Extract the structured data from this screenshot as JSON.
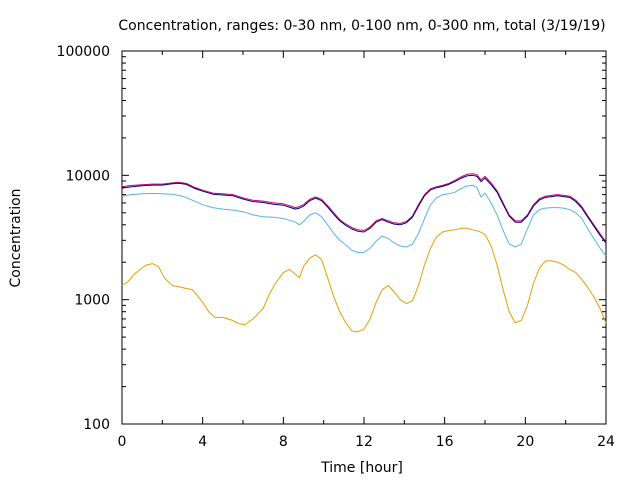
{
  "chart_data": {
    "type": "line",
    "title": "Concentration, ranges: 0-30 nm, 0-100 nm, 0-300 nm, total (3/19/19)",
    "xlabel": "Time [hour]",
    "ylabel": "Concentration",
    "xlim": [
      0,
      24
    ],
    "ylim": [
      100,
      100000
    ],
    "yscale": "log",
    "xticks": [
      0,
      4,
      8,
      12,
      16,
      20,
      24
    ],
    "xtick_labels": [
      "0",
      "4",
      "8",
      "12",
      "16",
      "20",
      "24"
    ],
    "yticks": [
      100,
      1000,
      10000,
      100000
    ],
    "ytick_labels": [
      "100",
      "1000",
      "10000",
      "100000"
    ],
    "grid": false,
    "legend": "none",
    "series": [
      {
        "color": "#E69F00",
        "x": [
          0,
          0.3,
          0.6,
          0.9,
          1.2,
          1.5,
          1.8,
          2.1,
          2.5,
          3,
          3.5,
          4,
          4.3,
          4.6,
          5,
          5.5,
          5.8,
          6.1,
          6.5,
          7,
          7.3,
          7.6,
          8,
          8.3,
          8.6,
          8.8,
          9,
          9.3,
          9.6,
          9.9,
          10.2,
          10.5,
          10.8,
          11.1,
          11.4,
          11.7,
          12,
          12.3,
          12.6,
          12.9,
          13.2,
          13.5,
          13.8,
          14.1,
          14.4,
          14.7,
          15,
          15.3,
          15.6,
          15.9,
          16.2,
          16.5,
          16.8,
          17.1,
          17.4,
          17.7,
          18,
          18.3,
          18.6,
          18.9,
          19.2,
          19.5,
          19.8,
          20.1,
          20.4,
          20.7,
          21,
          21.3,
          21.6,
          21.9,
          22.2,
          22.5,
          22.8,
          23.1,
          23.4,
          23.7,
          24
        ],
        "y": [
          1300,
          1400,
          1600,
          1750,
          1900,
          1950,
          1850,
          1500,
          1300,
          1250,
          1200,
          950,
          800,
          720,
          720,
          680,
          640,
          630,
          700,
          850,
          1100,
          1350,
          1650,
          1750,
          1600,
          1500,
          1850,
          2150,
          2300,
          2100,
          1500,
          1050,
          800,
          650,
          560,
          550,
          580,
          700,
          950,
          1200,
          1300,
          1150,
          1000,
          930,
          980,
          1300,
          1900,
          2600,
          3200,
          3500,
          3600,
          3650,
          3750,
          3750,
          3650,
          3550,
          3350,
          2700,
          1900,
          1200,
          800,
          650,
          680,
          900,
          1350,
          1800,
          2050,
          2050,
          2000,
          1900,
          1750,
          1650,
          1450,
          1250,
          1050,
          850,
          650
        ]
      },
      {
        "color": "#56B4E9",
        "x": [
          0,
          0.5,
          1,
          1.5,
          2,
          2.5,
          3,
          3.5,
          4,
          4.5,
          5,
          5.5,
          6,
          6.5,
          7,
          7.5,
          8,
          8.3,
          8.6,
          8.8,
          9,
          9.3,
          9.6,
          9.9,
          10.2,
          10.5,
          10.8,
          11.1,
          11.4,
          11.7,
          12,
          12.3,
          12.6,
          12.9,
          13.2,
          13.5,
          13.8,
          14.1,
          14.4,
          14.7,
          15,
          15.3,
          15.6,
          15.9,
          16.2,
          16.5,
          16.8,
          17.1,
          17.4,
          17.6,
          17.8,
          18,
          18.3,
          18.6,
          18.9,
          19.2,
          19.5,
          19.8,
          20.1,
          20.4,
          20.7,
          21,
          21.3,
          21.6,
          21.9,
          22.2,
          22.5,
          22.8,
          23.1,
          23.4,
          23.7,
          24
        ],
        "y": [
          6800,
          7000,
          7100,
          7150,
          7100,
          7050,
          6800,
          6300,
          5800,
          5500,
          5350,
          5250,
          5100,
          4800,
          4650,
          4600,
          4500,
          4350,
          4200,
          4000,
          4250,
          4800,
          5000,
          4650,
          4000,
          3400,
          3000,
          2750,
          2500,
          2400,
          2400,
          2600,
          2950,
          3250,
          3100,
          2850,
          2700,
          2650,
          2800,
          3400,
          4500,
          5800,
          6600,
          7000,
          7100,
          7300,
          7800,
          8200,
          8300,
          8000,
          6700,
          7200,
          6000,
          4800,
          3600,
          2800,
          2650,
          2800,
          3700,
          4800,
          5300,
          5450,
          5500,
          5500,
          5450,
          5300,
          5000,
          4500,
          3700,
          3100,
          2600,
          2250
        ]
      },
      {
        "color": "#CC0066",
        "x": [
          0,
          0.5,
          1,
          1.5,
          2,
          2.5,
          2.8,
          3.2,
          3.6,
          4,
          4.5,
          5,
          5.5,
          6,
          6.5,
          7,
          7.5,
          8,
          8.3,
          8.6,
          8.8,
          9,
          9.3,
          9.6,
          9.9,
          10.2,
          10.5,
          10.8,
          11.1,
          11.4,
          11.7,
          12,
          12.3,
          12.6,
          12.9,
          13.2,
          13.5,
          13.8,
          14.1,
          14.4,
          14.7,
          15,
          15.3,
          15.6,
          15.9,
          16.2,
          16.5,
          16.8,
          17.1,
          17.4,
          17.6,
          17.8,
          18,
          18.3,
          18.6,
          18.9,
          19.2,
          19.5,
          19.8,
          20.1,
          20.4,
          20.7,
          21,
          21.3,
          21.6,
          21.9,
          22.2,
          22.5,
          22.8,
          23.1,
          23.4,
          23.7,
          24
        ],
        "y": [
          8100,
          8300,
          8400,
          8500,
          8500,
          8700,
          8800,
          8600,
          8000,
          7600,
          7200,
          7100,
          7000,
          6600,
          6300,
          6200,
          6000,
          5900,
          5700,
          5500,
          5600,
          5800,
          6400,
          6700,
          6400,
          5700,
          5000,
          4400,
          4050,
          3800,
          3650,
          3600,
          3850,
          4300,
          4500,
          4300,
          4150,
          4100,
          4250,
          4700,
          5800,
          7000,
          7800,
          8100,
          8300,
          8600,
          9100,
          9700,
          10200,
          10300,
          10100,
          9200,
          9800,
          8700,
          7500,
          6000,
          4800,
          4300,
          4300,
          4800,
          5800,
          6500,
          6800,
          6900,
          7000,
          6900,
          6800,
          6300,
          5600,
          4700,
          4000,
          3400,
          2900
        ]
      },
      {
        "color": "#000080",
        "x": [
          0,
          0.5,
          1,
          1.5,
          2,
          2.5,
          2.8,
          3.2,
          3.6,
          4,
          4.5,
          5,
          5.5,
          6,
          6.5,
          7,
          7.5,
          8,
          8.3,
          8.6,
          8.8,
          9,
          9.3,
          9.6,
          9.9,
          10.2,
          10.5,
          10.8,
          11.1,
          11.4,
          11.7,
          12,
          12.3,
          12.6,
          12.9,
          13.2,
          13.5,
          13.8,
          14.1,
          14.4,
          14.7,
          15,
          15.3,
          15.6,
          15.9,
          16.2,
          16.5,
          16.8,
          17.1,
          17.4,
          17.6,
          17.8,
          18,
          18.3,
          18.6,
          18.9,
          19.2,
          19.5,
          19.8,
          20.1,
          20.4,
          20.7,
          21,
          21.3,
          21.6,
          21.9,
          22.2,
          22.5,
          22.8,
          23.1,
          23.4,
          23.7,
          24
        ],
        "y": [
          7900,
          8100,
          8250,
          8350,
          8350,
          8550,
          8650,
          8450,
          7850,
          7450,
          7050,
          6950,
          6850,
          6450,
          6150,
          6050,
          5850,
          5750,
          5550,
          5350,
          5450,
          5650,
          6250,
          6550,
          6250,
          5550,
          4850,
          4300,
          3950,
          3700,
          3550,
          3500,
          3750,
          4200,
          4400,
          4200,
          4050,
          4000,
          4150,
          4600,
          5650,
          6850,
          7650,
          7950,
          8150,
          8450,
          8900,
          9450,
          9900,
          10000,
          9800,
          8900,
          9500,
          8400,
          7300,
          5850,
          4700,
          4200,
          4200,
          4700,
          5650,
          6350,
          6650,
          6750,
          6850,
          6750,
          6650,
          6150,
          5450,
          4600,
          3900,
          3300,
          2850
        ]
      }
    ]
  }
}
